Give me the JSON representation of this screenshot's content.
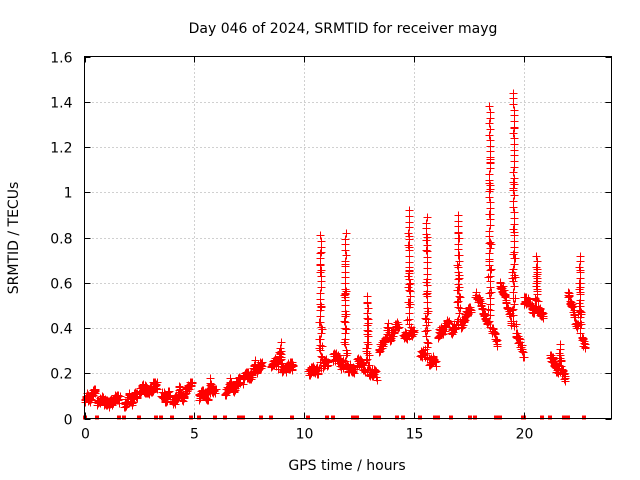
{
  "chart_data": {
    "type": "scatter",
    "title": "Day 046 of 2024, SRMTID for receiver mayg",
    "xlabel": "GPS time / hours",
    "ylabel": "SRMTID / TECUs",
    "xlim": [
      0,
      24
    ],
    "ylim": [
      0,
      1.6
    ],
    "grid": true,
    "marker": "+",
    "series_color": "#ff0000",
    "x_ticks": [
      0,
      5,
      10,
      15,
      20
    ],
    "x_tick_labels": [
      "0",
      "5",
      "10",
      "15",
      "20"
    ],
    "y_ticks": [
      0,
      0.2,
      0.4,
      0.6,
      0.8,
      1.0,
      1.2,
      1.4,
      1.6
    ],
    "y_tick_labels": [
      "0",
      "0.2",
      "0.4",
      "0.6",
      "0.8",
      "1",
      "1.2",
      "1.4",
      "1.6"
    ],
    "arcs": [
      {
        "x": [
          0.0,
          0.5
        ],
        "y": [
          0.08,
          0.12
        ],
        "peak": 0.13
      },
      {
        "x": [
          0.55,
          1.6
        ],
        "y": [
          0.07,
          0.08
        ],
        "peak": 0.11
      },
      {
        "x": [
          1.8,
          2.4
        ],
        "y": [
          0.05,
          0.1
        ],
        "peak": 0.13
      },
      {
        "x": [
          2.5,
          3.3
        ],
        "y": [
          0.12,
          0.14
        ],
        "peak": 0.16
      },
      {
        "x": [
          3.5,
          3.9
        ],
        "y": [
          0.09,
          0.11
        ],
        "peak": 0.12
      },
      {
        "x": [
          4.0,
          4.9
        ],
        "y": [
          0.06,
          0.15
        ],
        "peak": 0.16
      },
      {
        "x": [
          5.2,
          6.0
        ],
        "y": [
          0.1,
          0.12
        ],
        "peak": 0.18
      },
      {
        "x": [
          6.4,
          7.1
        ],
        "y": [
          0.11,
          0.16
        ],
        "peak": 0.19
      },
      {
        "x": [
          7.2,
          8.1
        ],
        "y": [
          0.17,
          0.23
        ],
        "peak": 0.26
      },
      {
        "x": [
          8.5,
          9.5
        ],
        "y": [
          0.24,
          0.22
        ],
        "peak": 0.34
      },
      {
        "x": [
          10.2,
          11.1
        ],
        "y": [
          0.2,
          0.24
        ],
        "peak": 0.81
      },
      {
        "x": [
          11.3,
          12.3
        ],
        "y": [
          0.27,
          0.2
        ],
        "peak": 0.82
      },
      {
        "x": [
          12.4,
          13.3
        ],
        "y": [
          0.25,
          0.18
        ],
        "peak": 0.54
      },
      {
        "x": [
          13.4,
          14.3
        ],
        "y": [
          0.3,
          0.41
        ],
        "peak": 0.44
      },
      {
        "x": [
          14.5,
          15.0
        ],
        "y": [
          0.36,
          0.37
        ],
        "peak": 0.92
      },
      {
        "x": [
          15.3,
          16.0
        ],
        "y": [
          0.28,
          0.24
        ],
        "peak": 0.89
      },
      {
        "x": [
          16.1,
          16.6
        ],
        "y": [
          0.36,
          0.43
        ],
        "peak": 0.45
      },
      {
        "x": [
          16.7,
          17.6
        ],
        "y": [
          0.38,
          0.48
        ],
        "peak": 0.9
      },
      {
        "x": [
          17.8,
          18.8
        ],
        "y": [
          0.55,
          0.33
        ],
        "peak": 1.38
      },
      {
        "x": [
          18.9,
          20.0
        ],
        "y": [
          0.6,
          0.27
        ],
        "peak": 1.44
      },
      {
        "x": [
          20.0,
          20.9
        ],
        "y": [
          0.52,
          0.45
        ],
        "peak": 0.72
      },
      {
        "x": [
          21.2,
          21.9
        ],
        "y": [
          0.27,
          0.17
        ],
        "peak": 0.33
      },
      {
        "x": [
          22.0,
          22.8
        ],
        "y": [
          0.55,
          0.3
        ],
        "peak": 0.72
      }
    ]
  }
}
